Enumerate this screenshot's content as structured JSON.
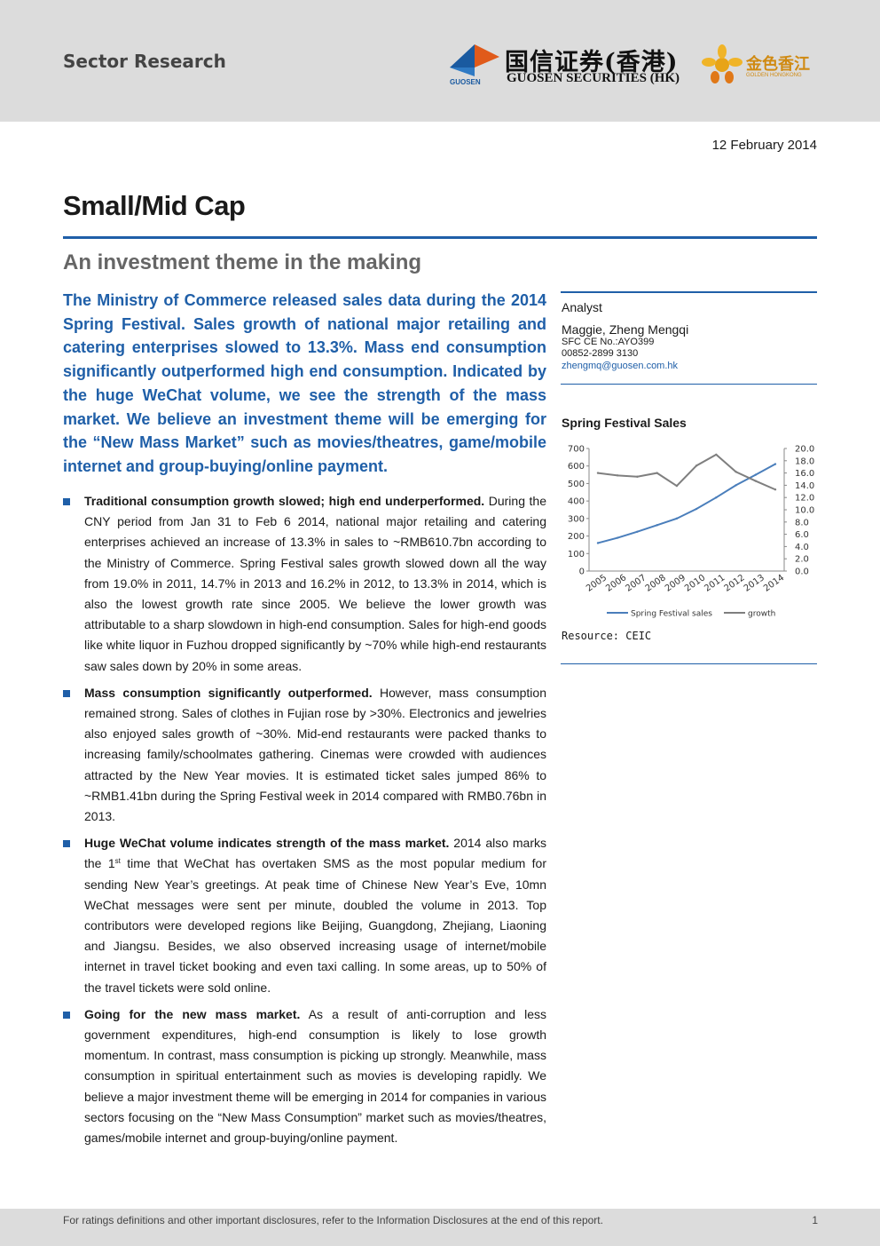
{
  "header": {
    "sector": "Sector Research",
    "logo_cn": "国信证券(香港)",
    "logo_en": "GUOSEN SECURITIES (HK)",
    "logo_mark_label": "GUOSEN",
    "gold_cn": "金色香江",
    "gold_en": "GOLDEN HONGKONG",
    "brand_blue": "#1f5fa8",
    "brand_gold": "#d08a12"
  },
  "date": "12 February 2014",
  "title": "Small/Mid Cap",
  "subtitle": "An investment theme in the making",
  "summary": "The Ministry of Commerce released sales data during the 2014 Spring Festival. Sales growth of national major retailing and catering enterprises slowed to 13.3%. Mass end consumption significantly outperformed high end consumption. Indicated by the huge WeChat volume, we see the strength of the mass market. We believe an investment theme will be emerging for the “New Mass Market” such as movies/theatres, game/mobile internet and group-buying/online payment.",
  "bullets": [
    {
      "heading": "Traditional consumption growth slowed; high end underperformed.",
      "body": " During the CNY period from Jan 31 to Feb 6 2014, national major retailing and catering enterprises achieved an increase of 13.3% in sales to ~RMB610.7bn according to the Ministry of Commerce. Spring Festival sales growth slowed down all the way from 19.0% in 2011, 14.7% in 2013 and 16.2% in 2012, to 13.3% in 2014, which is also the lowest growth rate since 2005. We believe the lower growth was attributable to a sharp slowdown in high-end consumption. Sales for high-end goods like white liquor in Fuzhou dropped significantly by ~70% while high-end restaurants saw sales down by 20% in some areas."
    },
    {
      "heading": "Mass consumption significantly outperformed.",
      "body": " However, mass consumption remained strong. Sales of clothes in Fujian rose by >30%. Electronics and jewelries also enjoyed sales growth of ~30%. Mid-end restaurants were packed thanks to increasing family/schoolmates gathering. Cinemas were crowded with audiences attracted by the New Year movies. It is estimated ticket sales jumped 86% to ~RMB1.41bn during the Spring Festival week in 2014 compared with RMB0.76bn in 2013."
    },
    {
      "heading": "Huge WeChat volume indicates strength of the mass market.",
      "body_pre": " 2014 also marks the 1",
      "body_sup": "st",
      "body_post": " time that WeChat has overtaken SMS as the most popular medium for sending New Year’s greetings. At peak time of Chinese New Year’s Eve, 10mn WeChat messages were sent per minute, doubled the volume in 2013. Top contributors were developed regions like Beijing, Guangdong, Zhejiang, Liaoning and Jiangsu. Besides, we also observed increasing usage of internet/mobile internet in travel ticket booking and even taxi calling. In some areas, up to 50% of the travel tickets were sold online."
    },
    {
      "heading": "Going for the new mass market.",
      "body": " As a result of anti-corruption and less government expenditures, high-end consumption is likely to lose growth momentum. In contrast, mass consumption is picking up strongly. Meanwhile, mass consumption in spiritual entertainment such as movies is developing rapidly. We believe a major investment theme will be emerging in 2014 for companies in various sectors focusing on the “New Mass Consumption” market such as movies/theatres, games/mobile internet and group-buying/online payment."
    }
  ],
  "analyst": {
    "label": "Analyst",
    "name": "Maggie, Zheng Mengqi",
    "sfc": "SFC CE No.:AYO399",
    "phone": "00852-2899 3130",
    "email": "zhengmq@guosen.com.hk"
  },
  "chart_title": "Spring Festival Sales",
  "resource": "Resource: CEIC",
  "chart_data": {
    "type": "line",
    "x": [
      "2005",
      "2006",
      "2007",
      "2008",
      "2009",
      "2010",
      "2011",
      "2012",
      "2013",
      "2014"
    ],
    "series": [
      {
        "name": "Spring Festival sales",
        "axis": "left",
        "color": "#4a7ebb",
        "values": [
          160,
          190,
          225,
          262,
          300,
          355,
          420,
          490,
          550,
          611
        ]
      },
      {
        "name": "growth",
        "axis": "right",
        "color": "#7f7f7f",
        "values": [
          16.0,
          15.6,
          15.4,
          16.0,
          13.9,
          17.2,
          19.0,
          16.2,
          14.7,
          13.3
        ]
      }
    ],
    "y_left": {
      "min": 0,
      "max": 700,
      "ticks": [
        "0",
        "100",
        "200",
        "300",
        "400",
        "500",
        "600",
        "700"
      ]
    },
    "y_right": {
      "min": 0,
      "max": 20,
      "ticks": [
        "0.0",
        "2.0",
        "4.0",
        "6.0",
        "8.0",
        "10.0",
        "12.0",
        "14.0",
        "16.0",
        "18.0",
        "20.0"
      ]
    },
    "legend": "bottom",
    "grid": false
  },
  "footer": {
    "text": "For ratings definitions and other important disclosures, refer to the Information Disclosures at the end of this report.",
    "page": "1"
  }
}
